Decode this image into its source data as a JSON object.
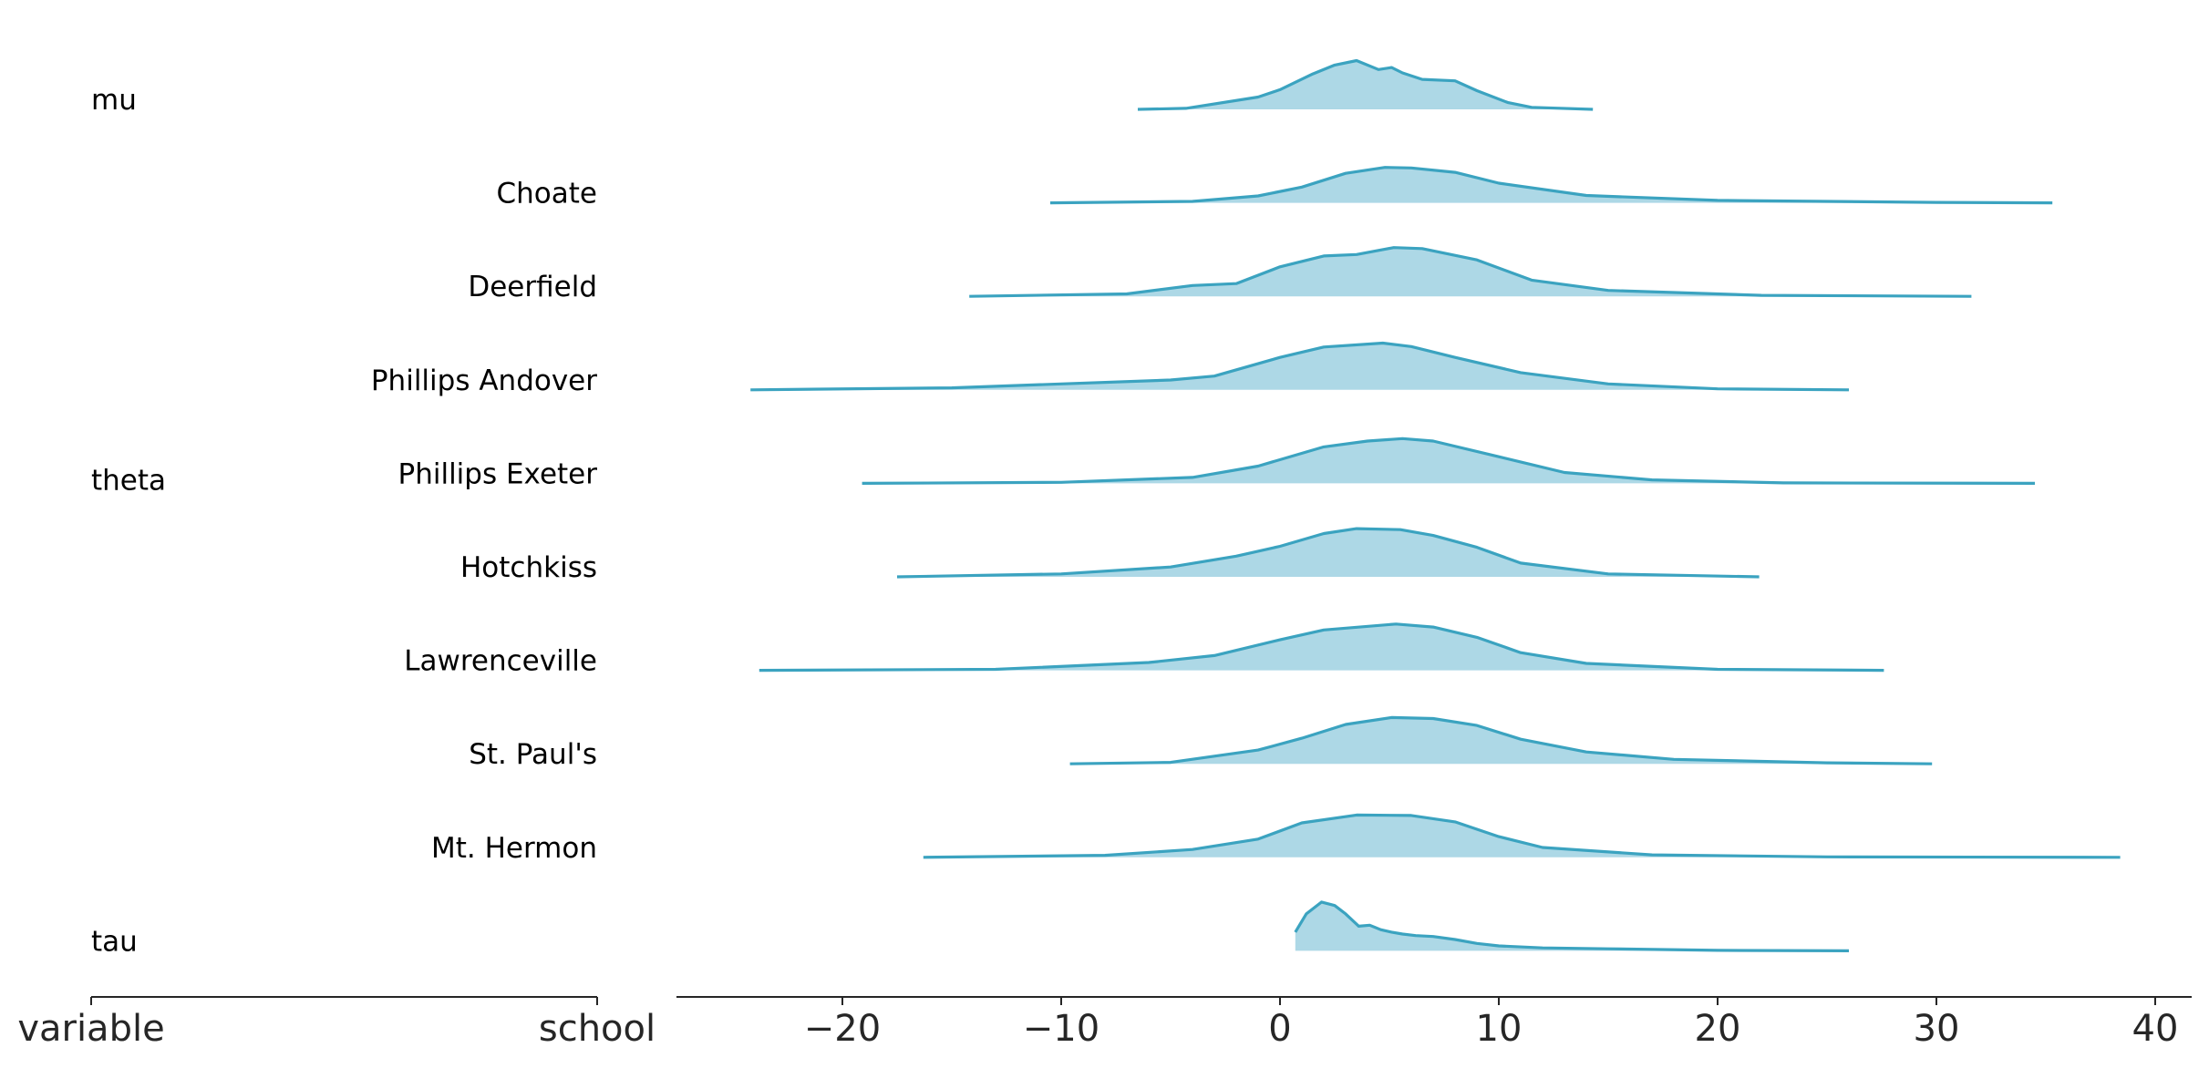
{
  "chart_data": {
    "type": "area",
    "subtype": "ridgeplot",
    "label_columns": [
      {
        "title": "variable"
      },
      {
        "title": "school"
      }
    ],
    "row_groups": [
      {
        "label": "mu",
        "rows": [
          0
        ]
      },
      {
        "label": "theta",
        "rows": [
          1,
          2,
          3,
          4,
          5,
          6,
          7,
          8
        ]
      },
      {
        "label": "tau",
        "rows": [
          9
        ]
      }
    ],
    "xlim": [
      -27,
      42
    ],
    "xticks": [
      -20,
      -10,
      0,
      10,
      20,
      30,
      40
    ],
    "xtick_labels": [
      "−20",
      "−10",
      "0",
      "10",
      "20",
      "30",
      "40"
    ],
    "line_color": "#3ba3c0",
    "fill_color": "#add8e6",
    "grid": false,
    "series": [
      {
        "name": "mu",
        "x": [
          -6.5,
          -4.3,
          -1,
          0,
          1.5,
          2.5,
          3.5,
          4.5,
          5.1,
          5.6,
          6.5,
          8,
          9,
          10.4,
          11.5,
          14.3
        ],
        "density": [
          0.0,
          0.02,
          0.25,
          0.4,
          0.72,
          0.9,
          0.99,
          0.81,
          0.85,
          0.74,
          0.61,
          0.58,
          0.38,
          0.14,
          0.04,
          0.0
        ]
      },
      {
        "name": "Choate",
        "x": [
          -10.5,
          -4,
          -1,
          1,
          3,
          4.8,
          6,
          8,
          10,
          14,
          20,
          30,
          35.3
        ],
        "density": [
          0.0,
          0.03,
          0.14,
          0.32,
          0.6,
          0.72,
          0.71,
          0.62,
          0.4,
          0.15,
          0.05,
          0.01,
          0.0
        ]
      },
      {
        "name": "Deerfield",
        "x": [
          -14.2,
          -7,
          -4,
          -2,
          0,
          2,
          3.5,
          5.2,
          6.5,
          9,
          11.5,
          15,
          22,
          31.6
        ],
        "density": [
          0.0,
          0.05,
          0.22,
          0.26,
          0.6,
          0.82,
          0.85,
          0.99,
          0.97,
          0.74,
          0.33,
          0.12,
          0.02,
          0.0
        ]
      },
      {
        "name": "Phillips Andover",
        "x": [
          -24.2,
          -15,
          -5,
          -3,
          0,
          2,
          4.7,
          6,
          8,
          11,
          15,
          20,
          26
        ],
        "density": [
          0.0,
          0.04,
          0.2,
          0.28,
          0.66,
          0.87,
          0.95,
          0.88,
          0.66,
          0.35,
          0.12,
          0.02,
          0.0
        ]
      },
      {
        "name": "Phillips Exeter",
        "x": [
          -19.1,
          -10,
          -4,
          -1,
          2,
          4,
          5.6,
          7,
          10,
          13,
          17,
          23,
          34.5
        ],
        "density": [
          0.0,
          0.02,
          0.12,
          0.35,
          0.74,
          0.86,
          0.91,
          0.86,
          0.54,
          0.22,
          0.07,
          0.01,
          0.0
        ]
      },
      {
        "name": "Hotchkiss",
        "x": [
          -17.5,
          -10,
          -5,
          -2,
          0,
          2,
          3.5,
          5.5,
          7,
          9,
          11,
          15,
          21.9
        ],
        "density": [
          0.0,
          0.06,
          0.2,
          0.42,
          0.62,
          0.88,
          0.98,
          0.96,
          0.84,
          0.6,
          0.28,
          0.06,
          0.0
        ]
      },
      {
        "name": "Lawrenceville",
        "x": [
          -23.8,
          -13,
          -6,
          -3,
          0,
          2,
          5.3,
          7,
          9,
          11,
          14,
          20,
          27.6
        ],
        "density": [
          0.0,
          0.02,
          0.16,
          0.3,
          0.62,
          0.82,
          0.94,
          0.88,
          0.67,
          0.36,
          0.14,
          0.02,
          0.0
        ]
      },
      {
        "name": "St. Paul's",
        "x": [
          -9.6,
          -5,
          -1,
          1,
          3,
          5.1,
          7,
          9,
          11,
          14,
          18,
          25,
          29.8
        ],
        "density": [
          0.0,
          0.03,
          0.28,
          0.52,
          0.8,
          0.94,
          0.92,
          0.78,
          0.5,
          0.24,
          0.09,
          0.02,
          0.0
        ]
      },
      {
        "name": "Mt. Hermon",
        "x": [
          -16.3,
          -8,
          -4,
          -1,
          1,
          3.5,
          6,
          8,
          10,
          12,
          17,
          25,
          38.4
        ],
        "density": [
          0.0,
          0.04,
          0.16,
          0.37,
          0.7,
          0.86,
          0.85,
          0.72,
          0.42,
          0.2,
          0.05,
          0.01,
          0.0
        ]
      },
      {
        "name": "tau",
        "x": [
          0.7,
          1.2,
          1.9,
          2.5,
          3,
          3.6,
          4.1,
          4.6,
          5.1,
          5.6,
          6.2,
          7,
          8,
          9,
          10,
          12,
          15,
          20,
          26
        ],
        "density": [
          0.38,
          0.75,
          0.99,
          0.92,
          0.75,
          0.5,
          0.52,
          0.43,
          0.38,
          0.34,
          0.31,
          0.29,
          0.23,
          0.15,
          0.1,
          0.06,
          0.04,
          0.01,
          0.0
        ]
      }
    ]
  }
}
